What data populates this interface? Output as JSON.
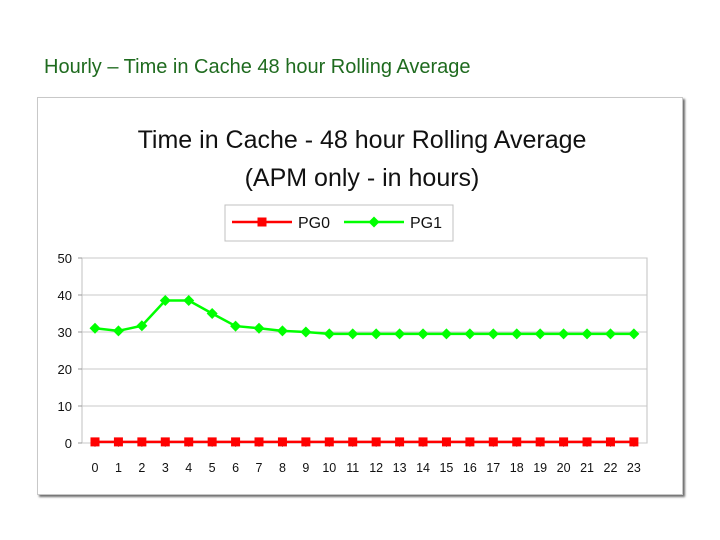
{
  "slide": {
    "title": "Hourly – Time in Cache 48 hour Rolling Average"
  },
  "chart_data": {
    "type": "line",
    "title": "Time in Cache - 48 hour Rolling Average",
    "subtitle": "(APM only - in hours)",
    "xlabel": "",
    "ylabel": "",
    "categories": [
      "0",
      "1",
      "2",
      "3",
      "4",
      "5",
      "6",
      "7",
      "8",
      "9",
      "10",
      "11",
      "12",
      "13",
      "14",
      "15",
      "16",
      "17",
      "18",
      "19",
      "20",
      "21",
      "22",
      "23"
    ],
    "ylim": [
      0,
      50
    ],
    "yticks": [
      0,
      10,
      20,
      30,
      40,
      50
    ],
    "grid": true,
    "legend": "top-center",
    "series": [
      {
        "name": "PG0",
        "color": "#ff0000",
        "marker": "square",
        "values": [
          0.3,
          0.3,
          0.3,
          0.3,
          0.3,
          0.3,
          0.3,
          0.3,
          0.3,
          0.3,
          0.3,
          0.3,
          0.3,
          0.3,
          0.3,
          0.3,
          0.3,
          0.3,
          0.3,
          0.3,
          0.3,
          0.3,
          0.3,
          0.3
        ]
      },
      {
        "name": "PG1",
        "color": "#00ff00",
        "marker": "diamond",
        "values": [
          31,
          30.3,
          31.7,
          38.5,
          38.5,
          35,
          31.6,
          31,
          30.3,
          30,
          29.5,
          29.5,
          29.5,
          29.5,
          29.5,
          29.5,
          29.5,
          29.5,
          29.5,
          29.5,
          29.5,
          29.5,
          29.5,
          29.5
        ]
      }
    ]
  }
}
